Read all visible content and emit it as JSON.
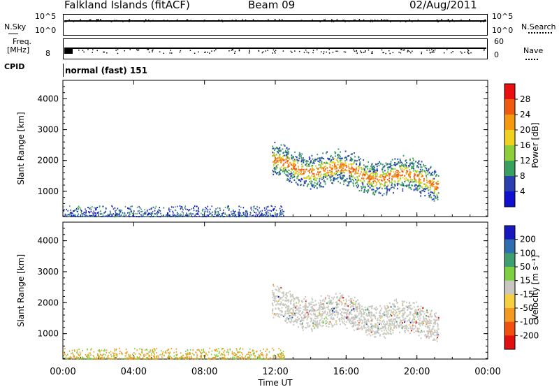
{
  "header": {
    "station": "Falkland Islands (fitACF)",
    "beam": "Beam 09",
    "date": "02/Aug/2011"
  },
  "top_panels": {
    "nsky_label": "N.Sky",
    "nsky_ticks": [
      "10^5",
      "10^0"
    ],
    "nsearch_label": "N.Search",
    "nsearch_ticks": [
      "10^5",
      "10^0"
    ],
    "freq_label": "Freq.",
    "freq_unit": "[MHz]",
    "freq_tick": "8",
    "nave_label": "Nave",
    "nave_ticks": [
      "60",
      "0"
    ],
    "cpid_label": "CPID",
    "cpid_value": "normal (fast) 151"
  },
  "chart_data": [
    {
      "type": "heatmap",
      "panel": "power",
      "xlabel": "Time UT",
      "ylabel": "Slant Range [km]",
      "x_ticks": [
        "00:00",
        "04:00",
        "08:00",
        "12:00",
        "16:00",
        "20:00",
        "00:00"
      ],
      "xlim_hours": [
        0,
        24
      ],
      "ylim_km": [
        180,
        4600
      ],
      "y_ticks": [
        1000,
        2000,
        3000,
        4000
      ],
      "colorbar_label": "Power [dB]",
      "colorbar_ticks": [
        "28",
        "24",
        "20",
        "16",
        "12",
        "8",
        "4"
      ],
      "colorbar_colors": [
        "#e81010",
        "#f05a10",
        "#f59a10",
        "#f0d020",
        "#8ccf3a",
        "#3aa060",
        "#2a3fb0",
        "#1010d0"
      ],
      "regions": [
        {
          "t_start": 11.8,
          "t_end": 21.2,
          "range_min": 600,
          "range_max": 2500,
          "dominant": "green-orange",
          "description_ignored": ""
        },
        {
          "t_start": 0,
          "t_end": 12,
          "range_min": 180,
          "range_max": 500,
          "dominant": "scattered"
        }
      ]
    },
    {
      "type": "heatmap",
      "panel": "velocity",
      "xlabel": "Time UT",
      "ylabel": "Slant Range [km]",
      "x_ticks": [
        "00:00",
        "04:00",
        "08:00",
        "12:00",
        "16:00",
        "20:00",
        "00:00"
      ],
      "xlim_hours": [
        0,
        24
      ],
      "ylim_km": [
        180,
        4600
      ],
      "y_ticks": [
        1000,
        2000,
        3000,
        4000
      ],
      "colorbar_label": "Velocity [m s⁻¹]",
      "colorbar_ticks": [
        "200",
        "100",
        "50",
        "15",
        "-15",
        "-50",
        "-100",
        "-200"
      ],
      "colorbar_colors": [
        "#1818c0",
        "#2f6fb0",
        "#3f9f70",
        "#7fd040",
        "#c8c8c0",
        "#f5d040",
        "#f59a20",
        "#f05010",
        "#e01010"
      ],
      "regions": [
        {
          "t_start": 11.8,
          "t_end": 21.2,
          "range_min": 600,
          "range_max": 2500,
          "dominant": "grey"
        },
        {
          "t_start": 0,
          "t_end": 12,
          "range_min": 180,
          "range_max": 500,
          "dominant": "yellow-green"
        }
      ]
    }
  ]
}
